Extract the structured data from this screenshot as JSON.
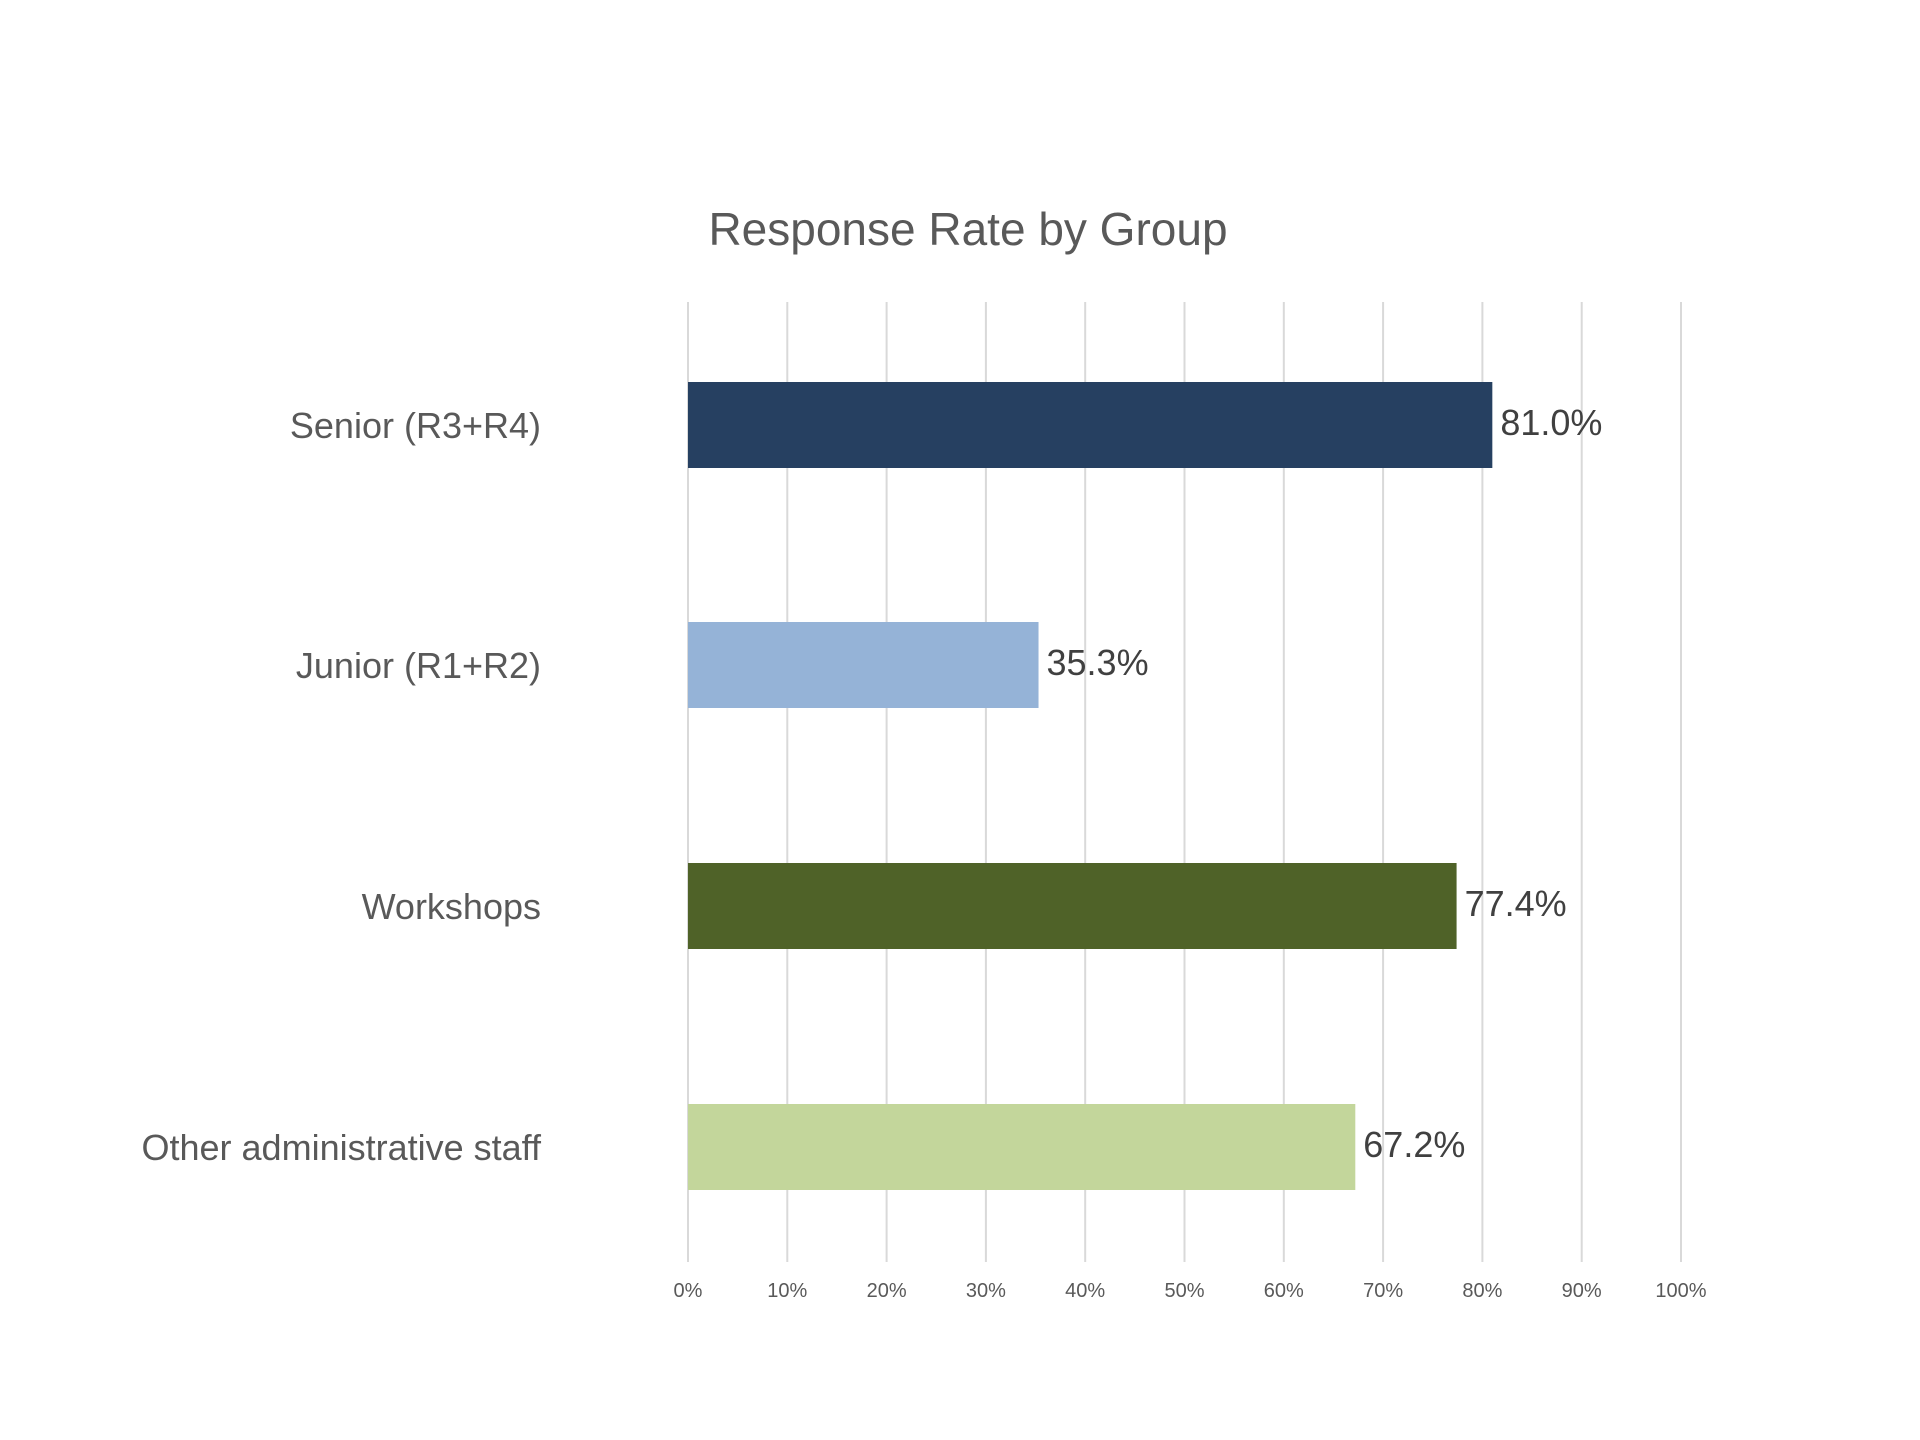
{
  "chart_data": {
    "type": "bar",
    "orientation": "horizontal",
    "title": "Response Rate by Group",
    "xlabel": "",
    "ylabel": "",
    "categories": [
      "Senior (R3+R4)",
      "Junior (R1+R2)",
      "Workshops",
      "Other administrative staff"
    ],
    "values": [
      81.0,
      35.3,
      77.4,
      67.2
    ],
    "data_labels": [
      "81.0%",
      "35.3%",
      "77.4%",
      "67.2%"
    ],
    "bar_colors": [
      "#264061",
      "#95B3D7",
      "#4F6228",
      "#C3D69B"
    ],
    "xlim": [
      0,
      100
    ],
    "x_ticks": [
      0,
      10,
      20,
      30,
      40,
      50,
      60,
      70,
      80,
      90,
      100
    ],
    "x_tick_labels": [
      "0%",
      "10%",
      "20%",
      "30%",
      "40%",
      "50%",
      "60%",
      "70%",
      "80%",
      "90%",
      "100%"
    ],
    "grid": true,
    "legend": "none"
  }
}
